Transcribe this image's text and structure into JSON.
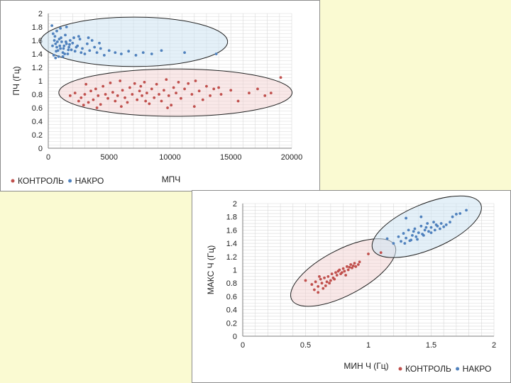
{
  "chart_data": [
    {
      "type": "scatter",
      "title": "",
      "xlabel": "МПЧ",
      "ylabel": "ПЧ (Гц)",
      "xlim": [
        0,
        20000
      ],
      "ylim": [
        0,
        2
      ],
      "x_ticks": [
        "0",
        "5000",
        "10000",
        "15000",
        "20000"
      ],
      "y_ticks": [
        "0",
        "0.2",
        "0.4",
        "0.6",
        "0.8",
        "1",
        "1.2",
        "1.4",
        "1.6",
        "1.8",
        "2"
      ],
      "grid": true,
      "legend_position": "bottom-left",
      "series": [
        {
          "name": "КОНТРОЛЬ",
          "color": "#c0504d",
          "points": [
            [
              1800,
              0.78
            ],
            [
              2200,
              0.82
            ],
            [
              2500,
              0.7
            ],
            [
              2700,
              0.75
            ],
            [
              3000,
              0.8
            ],
            [
              3100,
              0.95
            ],
            [
              3300,
              0.68
            ],
            [
              3500,
              0.85
            ],
            [
              3700,
              0.72
            ],
            [
              3900,
              0.88
            ],
            [
              4100,
              0.78
            ],
            [
              4300,
              0.65
            ],
            [
              4500,
              0.92
            ],
            [
              4700,
              0.8
            ],
            [
              4900,
              0.74
            ],
            [
              5100,
              0.97
            ],
            [
              5300,
              0.83
            ],
            [
              5500,
              0.7
            ],
            [
              5700,
              0.78
            ],
            [
              5900,
              1.0
            ],
            [
              6100,
              0.86
            ],
            [
              6300,
              0.75
            ],
            [
              6500,
              0.68
            ],
            [
              6700,
              0.9
            ],
            [
              6900,
              0.8
            ],
            [
              7100,
              0.96
            ],
            [
              7300,
              0.72
            ],
            [
              7500,
              0.85
            ],
            [
              7700,
              0.78
            ],
            [
              7900,
              0.98
            ],
            [
              8100,
              0.82
            ],
            [
              8300,
              0.66
            ],
            [
              8500,
              0.88
            ],
            [
              8700,
              0.75
            ],
            [
              8900,
              0.95
            ],
            [
              9100,
              0.8
            ],
            [
              9300,
              0.7
            ],
            [
              9500,
              0.86
            ],
            [
              9700,
              1.02
            ],
            [
              9900,
              0.78
            ],
            [
              10100,
              0.64
            ],
            [
              10300,
              0.9
            ],
            [
              10500,
              0.82
            ],
            [
              10700,
              0.98
            ],
            [
              10900,
              0.74
            ],
            [
              11200,
              0.88
            ],
            [
              11500,
              0.96
            ],
            [
              11800,
              0.8
            ],
            [
              12100,
              1.0
            ],
            [
              12400,
              0.85
            ],
            [
              12700,
              0.72
            ],
            [
              13000,
              0.92
            ],
            [
              13300,
              0.78
            ],
            [
              13600,
              0.88
            ],
            [
              14200,
              0.8
            ],
            [
              15000,
              0.86
            ],
            [
              15600,
              0.7
            ],
            [
              16500,
              0.82
            ],
            [
              17200,
              0.88
            ],
            [
              17800,
              0.78
            ],
            [
              18300,
              0.82
            ],
            [
              19100,
              1.05
            ],
            [
              2900,
              0.64
            ],
            [
              4000,
              0.6
            ],
            [
              6000,
              0.62
            ],
            [
              8000,
              0.7
            ],
            [
              12000,
              0.62
            ],
            [
              14000,
              0.9
            ],
            [
              9800,
              0.6
            ],
            [
              7600,
              0.92
            ]
          ]
        },
        {
          "name": "НАКРО",
          "color": "#4f81bd",
          "points": [
            [
              300,
              1.82
            ],
            [
              400,
              1.7
            ],
            [
              500,
              1.6
            ],
            [
              600,
              1.55
            ],
            [
              700,
              1.5
            ],
            [
              800,
              1.45
            ],
            [
              900,
              1.62
            ],
            [
              1000,
              1.48
            ],
            [
              1100,
              1.58
            ],
            [
              1200,
              1.42
            ],
            [
              1300,
              1.52
            ],
            [
              1400,
              1.68
            ],
            [
              1500,
              1.55
            ],
            [
              1600,
              1.4
            ],
            [
              1700,
              1.5
            ],
            [
              1800,
              1.6
            ],
            [
              1900,
              1.46
            ],
            [
              2000,
              1.56
            ],
            [
              2200,
              1.44
            ],
            [
              2400,
              1.52
            ],
            [
              2600,
              1.62
            ],
            [
              2800,
              1.48
            ],
            [
              3000,
              1.4
            ],
            [
              3200,
              1.55
            ],
            [
              3400,
              1.45
            ],
            [
              3600,
              1.6
            ],
            [
              3800,
              1.5
            ],
            [
              4000,
              1.42
            ],
            [
              4300,
              1.48
            ],
            [
              4600,
              1.38
            ],
            [
              5000,
              1.45
            ],
            [
              5500,
              1.42
            ],
            [
              6000,
              1.4
            ],
            [
              6600,
              1.44
            ],
            [
              7200,
              1.38
            ],
            [
              7800,
              1.42
            ],
            [
              8500,
              1.4
            ],
            [
              9300,
              1.45
            ],
            [
              11200,
              1.42
            ],
            [
              13800,
              1.4
            ],
            [
              350,
              1.52
            ],
            [
              450,
              1.38
            ],
            [
              550,
              1.66
            ],
            [
              650,
              1.44
            ],
            [
              750,
              1.58
            ],
            [
              850,
              1.36
            ],
            [
              950,
              1.52
            ],
            [
              1050,
              1.64
            ],
            [
              1250,
              1.48
            ],
            [
              1350,
              1.4
            ],
            [
              1450,
              1.58
            ],
            [
              1650,
              1.46
            ],
            [
              1750,
              1.54
            ],
            [
              2100,
              1.64
            ],
            [
              2300,
              1.5
            ],
            [
              2700,
              1.42
            ],
            [
              3300,
              1.64
            ],
            [
              4200,
              1.56
            ],
            [
              1000,
              1.78
            ],
            [
              700,
              1.74
            ],
            [
              1500,
              1.8
            ],
            [
              2500,
              1.66
            ],
            [
              600,
              1.34
            ],
            [
              1200,
              1.36
            ]
          ]
        }
      ]
    },
    {
      "type": "scatter",
      "title": "",
      "xlabel": "МИН Ч (Гц)",
      "ylabel": "МАКС Ч (Гц)",
      "xlim": [
        0,
        2
      ],
      "ylim": [
        0,
        2
      ],
      "x_ticks": [
        "0",
        "0.5",
        "1",
        "1.5",
        "2"
      ],
      "y_ticks": [
        "0",
        "0.2",
        "0.4",
        "0.6",
        "0.8",
        "1",
        "1.2",
        "1.4",
        "1.6",
        "1.8",
        "2"
      ],
      "grid": true,
      "legend_position": "bottom-right",
      "series": [
        {
          "name": "КОНТРОЛЬ",
          "color": "#c0504d",
          "points": [
            [
              0.5,
              0.84
            ],
            [
              0.55,
              0.78
            ],
            [
              0.57,
              0.7
            ],
            [
              0.58,
              0.82
            ],
            [
              0.6,
              0.75
            ],
            [
              0.62,
              0.86
            ],
            [
              0.63,
              0.8
            ],
            [
              0.65,
              0.88
            ],
            [
              0.66,
              0.76
            ],
            [
              0.68,
              0.9
            ],
            [
              0.7,
              0.84
            ],
            [
              0.71,
              0.94
            ],
            [
              0.72,
              0.88
            ],
            [
              0.74,
              0.96
            ],
            [
              0.75,
              0.92
            ],
            [
              0.77,
              1.0
            ],
            [
              0.78,
              0.94
            ],
            [
              0.8,
              1.02
            ],
            [
              0.81,
              0.98
            ],
            [
              0.83,
              1.05
            ],
            [
              0.84,
              1.0
            ],
            [
              0.86,
              1.08
            ],
            [
              0.87,
              1.03
            ],
            [
              0.89,
              1.1
            ],
            [
              0.9,
              1.05
            ],
            [
              0.92,
              1.08
            ],
            [
              0.93,
              1.12
            ],
            [
              1.0,
              1.24
            ],
            [
              1.1,
              1.26
            ],
            [
              0.6,
              0.66
            ],
            [
              0.64,
              0.72
            ],
            [
              0.69,
              0.8
            ],
            [
              0.73,
              0.86
            ],
            [
              0.79,
              0.96
            ],
            [
              0.85,
              1.04
            ],
            [
              0.61,
              0.9
            ],
            [
              0.67,
              0.82
            ],
            [
              0.76,
              0.98
            ],
            [
              0.82,
              0.92
            ],
            [
              0.88,
              1.06
            ]
          ]
        },
        {
          "name": "НАКРО",
          "color": "#4f81bd",
          "points": [
            [
              1.15,
              1.47
            ],
            [
              1.2,
              1.4
            ],
            [
              1.24,
              1.5
            ],
            [
              1.26,
              1.43
            ],
            [
              1.28,
              1.55
            ],
            [
              1.3,
              1.48
            ],
            [
              1.32,
              1.6
            ],
            [
              1.33,
              1.44
            ],
            [
              1.35,
              1.52
            ],
            [
              1.37,
              1.62
            ],
            [
              1.38,
              1.5
            ],
            [
              1.4,
              1.56
            ],
            [
              1.42,
              1.66
            ],
            [
              1.43,
              1.54
            ],
            [
              1.45,
              1.6
            ],
            [
              1.47,
              1.7
            ],
            [
              1.48,
              1.58
            ],
            [
              1.5,
              1.64
            ],
            [
              1.52,
              1.72
            ],
            [
              1.53,
              1.6
            ],
            [
              1.55,
              1.66
            ],
            [
              1.57,
              1.62
            ],
            [
              1.58,
              1.7
            ],
            [
              1.6,
              1.65
            ],
            [
              1.62,
              1.68
            ],
            [
              1.65,
              1.72
            ],
            [
              1.67,
              1.8
            ],
            [
              1.7,
              1.84
            ],
            [
              1.73,
              1.85
            ],
            [
              1.78,
              1.9
            ],
            [
              1.3,
              1.78
            ],
            [
              1.42,
              1.8
            ],
            [
              1.34,
              1.45
            ],
            [
              1.36,
              1.58
            ],
            [
              1.39,
              1.46
            ],
            [
              1.44,
              1.52
            ],
            [
              1.46,
              1.64
            ],
            [
              1.5,
              1.56
            ],
            [
              1.54,
              1.68
            ],
            [
              1.29,
              1.4
            ]
          ]
        }
      ]
    }
  ]
}
